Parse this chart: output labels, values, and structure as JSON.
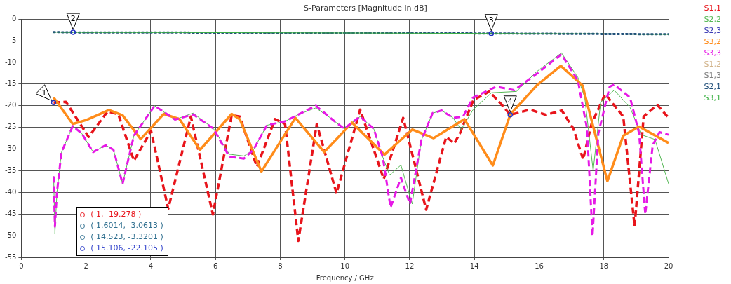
{
  "chart_data": {
    "type": "line",
    "title": "S-Parameters [Magnitude in dB]",
    "xlabel": "Frequency / GHz",
    "xlim": [
      0,
      20
    ],
    "xticks": [
      0,
      2,
      4,
      6,
      8,
      10,
      12,
      14,
      16,
      18,
      20
    ],
    "ylim": [
      -55,
      0
    ],
    "yticks": [
      0,
      -5,
      -10,
      -15,
      -20,
      -25,
      -30,
      -35,
      -40,
      -45,
      -50,
      -55
    ],
    "grid": true,
    "legend": "right",
    "marker": "none",
    "series": [
      {
        "name": "S1,1",
        "color": "#e8141b",
        "line_style": "dashed",
        "x": [
          1.0,
          1.38,
          2.08,
          2.67,
          3.0,
          3.48,
          4.01,
          4.54,
          5.24,
          5.92,
          6.5,
          6.75,
          7.28,
          7.84,
          8.15,
          8.56,
          9.13,
          9.74,
          10.47,
          11.2,
          11.8,
          12.51,
          13.13,
          13.38,
          13.55,
          13.97,
          14.46,
          14.85,
          15.106,
          15.72,
          16.21,
          16.7,
          17.06,
          17.36,
          17.62,
          18.04,
          18.6,
          18.95,
          19.23,
          19.65,
          20.0
        ],
        "values": [
          -19.278,
          -19.1,
          -27.2,
          -21.3,
          -22.0,
          -32.7,
          -25.8,
          -43.8,
          -22.5,
          -45.1,
          -22.2,
          -22.5,
          -34.1,
          -23.1,
          -24.2,
          -51.2,
          -24.2,
          -40.2,
          -20.9,
          -36.9,
          -22.8,
          -44.0,
          -27.2,
          -28.7,
          -26.4,
          -18.7,
          -16.7,
          -19.8,
          -22.105,
          -20.9,
          -22.1,
          -21.1,
          -25.3,
          -32.4,
          -24.2,
          -17.3,
          -22.5,
          -47.9,
          -22.5,
          -19.8,
          -22.8
        ]
      },
      {
        "name": "S2,2",
        "color": "#56b856",
        "line_style": "solid",
        "x": [
          1.0,
          1.04,
          1.1,
          1.24,
          1.59,
          1.87,
          2.22,
          2.61,
          2.85,
          3.13,
          3.48,
          4.12,
          4.75,
          5.31,
          5.94,
          6.43,
          6.88,
          7.17,
          7.59,
          8.15,
          8.57,
          9.1,
          9.55,
          9.97,
          10.47,
          10.89,
          11.17,
          11.38,
          11.73,
          12.08,
          12.36,
          12.71,
          12.99,
          13.34,
          13.59,
          13.96,
          14.53,
          15.3,
          15.93,
          16.69,
          17.2,
          17.41,
          17.67,
          17.9,
          18.32,
          18.81,
          19.16,
          19.58,
          20.0
        ],
        "values": [
          -36.3,
          -49.5,
          -40.2,
          -30.8,
          -24.7,
          -26.4,
          -30.7,
          -29.1,
          -30.2,
          -38.0,
          -26.9,
          -20.0,
          -23.2,
          -21.7,
          -25.3,
          -31.2,
          -31.6,
          -30.2,
          -24.5,
          -23.6,
          -22.0,
          -20.5,
          -22.8,
          -25.3,
          -22.5,
          -25.3,
          -31.9,
          -36.0,
          -33.7,
          -42.7,
          -28.0,
          -21.7,
          -21.1,
          -22.8,
          -25.5,
          -20.9,
          -17.0,
          -16.7,
          -12.1,
          -7.8,
          -13.5,
          -18.1,
          -35.0,
          -19.2,
          -16.4,
          -20.4,
          -26.7,
          -27.8,
          -38.0
        ]
      },
      {
        "name": "S2,3",
        "color": "#3c3cb4",
        "line_style": "solid"
      },
      {
        "name": "S3,2",
        "color": "#ff8c1a",
        "line_style": "solid",
        "x": [
          1.0,
          1.59,
          2.01,
          2.71,
          3.13,
          3.69,
          4.4,
          4.89,
          5.52,
          6.5,
          6.75,
          7.42,
          8.47,
          9.36,
          10.22,
          11.22,
          12.08,
          12.74,
          13.69,
          14.57,
          15.11,
          15.93,
          16.67,
          17.34,
          18.11,
          18.6,
          19.09,
          20.0
        ],
        "values": [
          -18.1,
          -24.2,
          -23.3,
          -21.0,
          -22.2,
          -27.7,
          -21.9,
          -23.1,
          -30.2,
          -21.9,
          -23.1,
          -35.2,
          -22.8,
          -30.7,
          -23.9,
          -31.3,
          -25.5,
          -27.5,
          -23.1,
          -33.8,
          -22.0,
          -15.3,
          -10.8,
          -15.3,
          -37.4,
          -26.9,
          -24.8,
          -28.6
        ]
      },
      {
        "name": "S3,3",
        "color": "#e619e6",
        "line_style": "dashed",
        "x": [
          1.0,
          1.04,
          1.1,
          1.24,
          1.59,
          1.87,
          2.22,
          2.61,
          2.85,
          3.13,
          3.48,
          4.12,
          4.75,
          5.31,
          5.94,
          6.43,
          6.88,
          7.17,
          7.59,
          8.15,
          8.57,
          9.1,
          9.55,
          9.97,
          10.47,
          10.89,
          11.17,
          11.41,
          11.73,
          12.01,
          12.36,
          12.71,
          12.99,
          13.34,
          13.65,
          13.96,
          14.67,
          15.23,
          15.93,
          16.69,
          17.2,
          17.48,
          17.65,
          17.83,
          18.18,
          18.32,
          18.81,
          19.09,
          19.28,
          19.51,
          19.72,
          20.0
        ],
        "values": [
          -36.3,
          -47.9,
          -40.2,
          -30.8,
          -24.7,
          -26.4,
          -30.7,
          -29.1,
          -30.2,
          -38.0,
          -26.9,
          -20.0,
          -23.2,
          -22.0,
          -25.3,
          -31.8,
          -32.2,
          -30.2,
          -24.5,
          -23.6,
          -22.0,
          -20.0,
          -22.8,
          -25.3,
          -22.5,
          -25.3,
          -31.9,
          -43.5,
          -36.6,
          -42.7,
          -28.0,
          -21.7,
          -21.1,
          -22.8,
          -22.5,
          -18.1,
          -15.6,
          -16.4,
          -12.6,
          -8.1,
          -14.2,
          -25.3,
          -50.1,
          -26.4,
          -15.6,
          -15.1,
          -18.1,
          -26.4,
          -45.1,
          -29.1,
          -26.1,
          -26.7
        ]
      },
      {
        "name": "S1,2",
        "color": "#d2b48c",
        "line_style": "solid"
      },
      {
        "name": "S1,3",
        "color": "#808080",
        "line_style": "solid"
      },
      {
        "name": "S2,1",
        "color": "#1f4e79",
        "line_style": "dotted",
        "x": [
          1.0,
          1.6014,
          5.0,
          10.0,
          14.523,
          17.0,
          20.0
        ],
        "values": [
          -3.0,
          -3.0613,
          -3.1,
          -3.2,
          -3.3201,
          -3.4,
          -3.5
        ]
      },
      {
        "name": "S3,1",
        "color": "#3cb043",
        "line_style": "solid",
        "x": [
          1.0,
          1.6014,
          5.0,
          10.0,
          14.523,
          17.0,
          20.0
        ],
        "values": [
          -3.0,
          -3.0613,
          -3.1,
          -3.2,
          -3.3201,
          -3.4,
          -3.5
        ]
      }
    ],
    "annotations": [
      {
        "text": "1",
        "x": 1,
        "y": -19.278
      },
      {
        "text": "2",
        "x": 1.6014,
        "y": -3.0613
      },
      {
        "text": "3",
        "x": 14.523,
        "y": -3.3201
      },
      {
        "text": "4",
        "x": 15.106,
        "y": -22.105
      },
      "( 1, -19.278 )",
      "( 1.6014, -3.0613 )",
      "( 14.523, -3.3201 )",
      "( 15.106, -22.105 )"
    ]
  }
}
